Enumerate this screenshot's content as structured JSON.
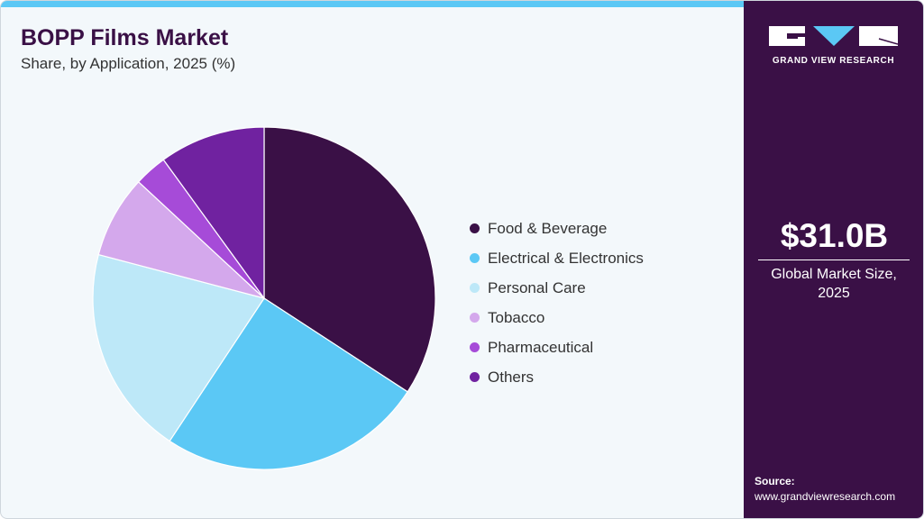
{
  "header": {
    "title": "BOPP Films Market",
    "subtitle": "Share, by Application, 2025 (%)"
  },
  "brand": {
    "name": "GRAND VIEW RESEARCH"
  },
  "stat": {
    "value": "$31.0B",
    "caption": "Global Market Size, 2025"
  },
  "source": {
    "label": "Source:",
    "url": "www.grandviewresearch.com"
  },
  "chart_data": {
    "type": "pie",
    "title": "BOPP Films Market",
    "subtitle": "Share, by Application, 2025 (%)",
    "legend_position": "right",
    "categories": [
      "Food & Beverage",
      "Electrical & Electronics",
      "Personal Care",
      "Tobacco",
      "Pharmaceutical",
      "Others"
    ],
    "values": [
      34.2,
      25.1,
      19.8,
      7.8,
      3.1,
      10.0
    ],
    "colors": [
      "#3a1046",
      "#5bc8f5",
      "#bde8f8",
      "#d4a8ec",
      "#a64bd8",
      "#7022a0"
    ]
  }
}
